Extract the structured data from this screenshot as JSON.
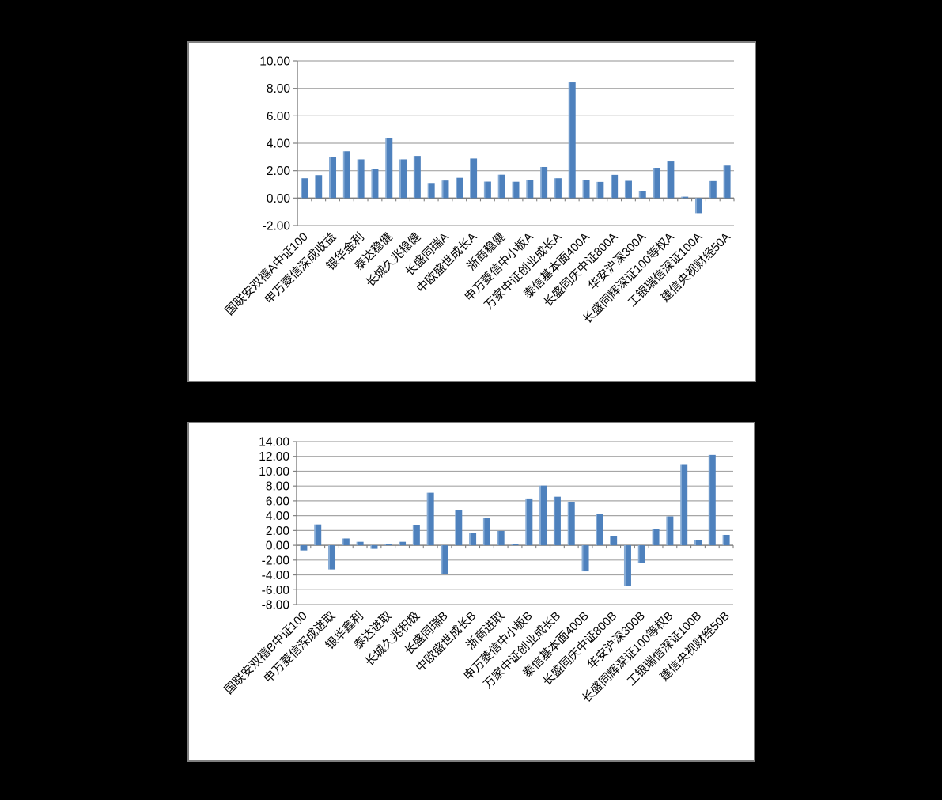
{
  "page": {
    "background_color": "#000000"
  },
  "panel": {
    "background_color": "#FFFFFF",
    "border_color": "#7F7F7F"
  },
  "chart_data": [
    {
      "name": "fund-a-share-premium-chart",
      "type": "bar",
      "title": "",
      "xlabel": "",
      "ylabel": "",
      "ylim": [
        -2,
        10
      ],
      "ytick_step": 2,
      "ytick_labels": [
        "10.00",
        "8.00",
        "6.00",
        "4.00",
        "2.00",
        "0.00",
        "-2.00"
      ],
      "grid": true,
      "legend_position": "none",
      "label_interval": 2,
      "bar_color": "#4E81BD",
      "bar_highlight_color": "#86ABD5",
      "gridline_color": "#A6A6A6",
      "axis_color": "#7F7F7F",
      "text_color": "#000000",
      "categories": [
        "国联安双禧A中证100",
        "申万菱信深成收益",
        "银华金利",
        "泰达稳健",
        "长城久兆稳健",
        "长盛同瑞A",
        "中欧盛世成长A",
        "浙商稳健",
        "申万菱信中小板A",
        "万家中证创业成长A",
        "泰信基本面400A",
        "长盛同庆中证800A",
        "华安沪深300A",
        "长盛同辉深证100等权A",
        "工银瑞信深证100A",
        "建信央视财经50A"
      ],
      "values": [
        1.45,
        1.68,
        3.0,
        3.41,
        2.82,
        2.15,
        4.37,
        2.82,
        3.07,
        1.1,
        1.28,
        1.48,
        2.88,
        1.2,
        1.71,
        1.19,
        1.3,
        2.27,
        1.45,
        8.44,
        1.33,
        1.18,
        1.7,
        1.26,
        0.52,
        2.21,
        2.67,
        0.1,
        -1.1,
        1.24,
        2.37
      ]
    },
    {
      "name": "fund-b-share-premium-chart",
      "type": "bar",
      "title": "",
      "xlabel": "",
      "ylabel": "",
      "ylim": [
        -8,
        14
      ],
      "ytick_step": 2,
      "ytick_labels": [
        "14.00",
        "12.00",
        "10.00",
        "8.00",
        "6.00",
        "4.00",
        "2.00",
        "0.00",
        "-2.00",
        "-4.00",
        "-6.00",
        "-8.00"
      ],
      "grid": true,
      "legend_position": "none",
      "label_interval": 2,
      "bar_color": "#4E81BD",
      "bar_highlight_color": "#86ABD5",
      "gridline_color": "#A6A6A6",
      "axis_color": "#7F7F7F",
      "text_color": "#000000",
      "categories": [
        "国联安双禧B中证100",
        "申万菱信深成进取",
        "银华鑫利",
        "泰达进取",
        "长城久兆积极",
        "长盛同瑞B",
        "中欧盛世成长B",
        "浙商进取",
        "申万菱信中小板B",
        "万家中证创业成长B",
        "泰信基本面400B",
        "长盛同庆中证800B",
        "华安沪深300B",
        "长盛同辉深证100等权B",
        "工银瑞信深证100B",
        "建信央视财经50B"
      ],
      "values": [
        -0.7,
        2.82,
        -3.26,
        0.92,
        0.47,
        -0.48,
        0.21,
        0.47,
        2.76,
        7.1,
        -3.87,
        4.73,
        1.7,
        3.64,
        1.94,
        0.15,
        6.32,
        8.06,
        6.56,
        5.78,
        -3.52,
        4.28,
        1.21,
        -5.45,
        -2.38,
        2.21,
        3.9,
        10.85,
        0.7,
        12.2,
        1.4
      ]
    }
  ]
}
